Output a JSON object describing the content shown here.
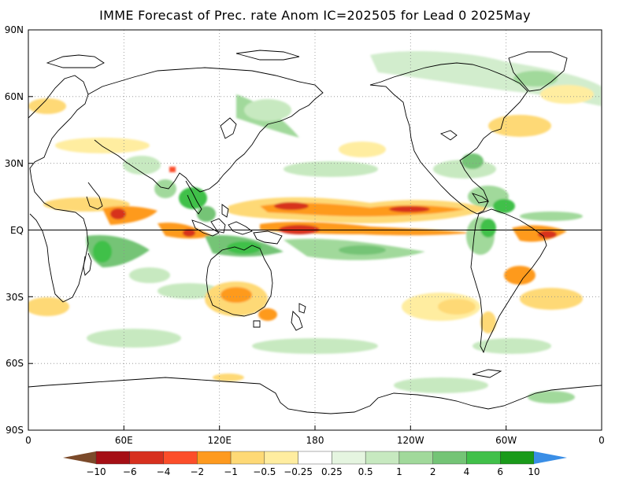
{
  "map": {
    "title": "IMME Forecast of Prec. rate Anom IC=202505 for Lead 0 2025May",
    "lat_labels": [
      "90N",
      "60N",
      "30N",
      "EQ",
      "30S",
      "60S",
      "90S"
    ],
    "lon_labels": [
      "0",
      "60E",
      "120E",
      "180",
      "120W",
      "60W",
      "0"
    ],
    "equator_line": true,
    "grid": "dotted"
  },
  "colorbar": {
    "labels": [
      "−10",
      "−6",
      "−4",
      "−2",
      "−1",
      "−0.5",
      "−0.25",
      "0.25",
      "0.5",
      "1",
      "2",
      "4",
      "6",
      "10"
    ],
    "colors": [
      "#7b4a2a",
      "#a50f15",
      "#d7301f",
      "#fc4e2a",
      "#fe9a1f",
      "#fed976",
      "#ffeda0",
      "#ffffff",
      "#e5f5e0",
      "#c7e9c0",
      "#a1d99b",
      "#74c476",
      "#41c04a",
      "#1a9a1a",
      "#3a8ee6"
    ]
  },
  "colors": {
    "positive_strong": "#41c04a",
    "positive_weak": "#c7e9c0",
    "negative_weak": "#fed976",
    "negative_strong": "#fe9a1f",
    "negative_extreme": "#d7301f"
  }
}
